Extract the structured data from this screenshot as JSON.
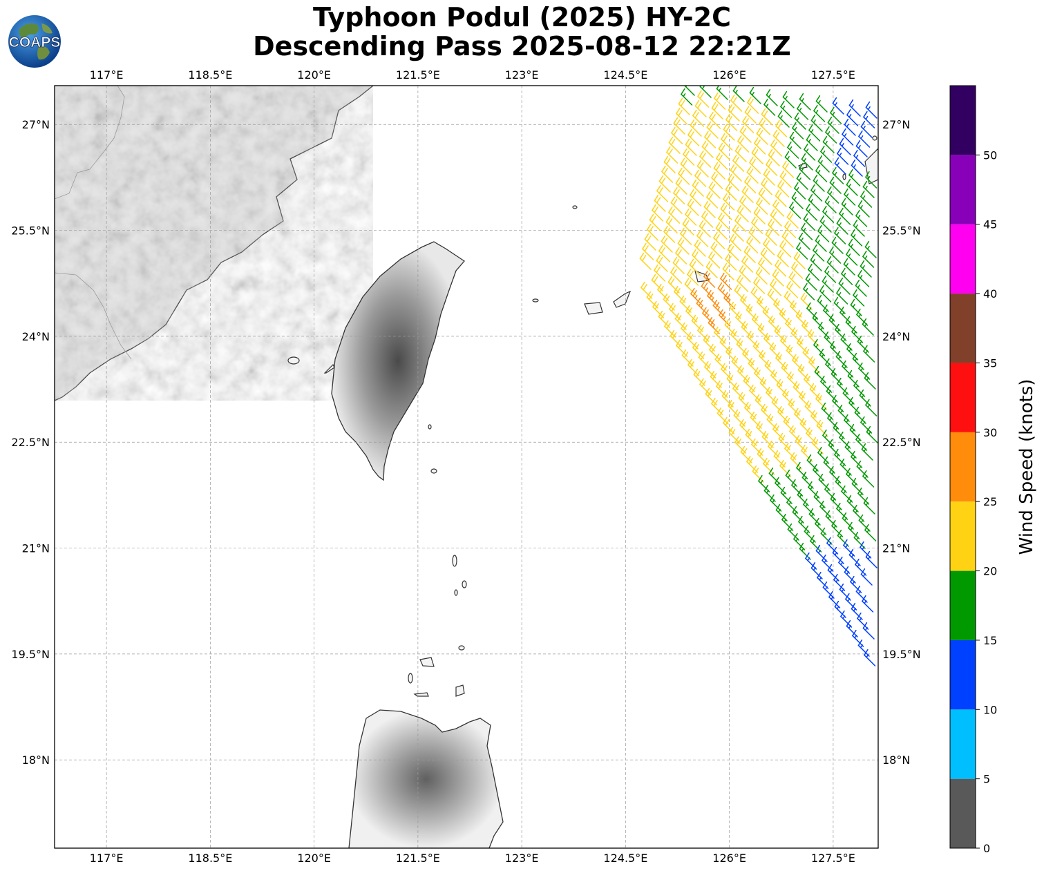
{
  "title": {
    "line1": "Typhoon Podul (2025) HY-2C",
    "line2": "Descending Pass 2025-08-12 22:21Z"
  },
  "logo": {
    "text": "COAPS",
    "icon": "globe-icon"
  },
  "map": {
    "lon_range": [
      116.25,
      128.15
    ],
    "lat_range": [
      16.75,
      27.55
    ],
    "lon_ticks": [
      {
        "value": 117,
        "label": "117°E"
      },
      {
        "value": 118.5,
        "label": "118.5°E"
      },
      {
        "value": 120,
        "label": "120°E"
      },
      {
        "value": 121.5,
        "label": "121.5°E"
      },
      {
        "value": 123,
        "label": "123°E"
      },
      {
        "value": 124.5,
        "label": "124.5°E"
      },
      {
        "value": 126,
        "label": "126°E"
      },
      {
        "value": 127.5,
        "label": "127.5°E"
      }
    ],
    "lat_ticks": [
      {
        "value": 27,
        "label": "27°N"
      },
      {
        "value": 25.5,
        "label": "25.5°N"
      },
      {
        "value": 24,
        "label": "24°N"
      },
      {
        "value": 22.5,
        "label": "22.5°N"
      },
      {
        "value": 21,
        "label": "21°N"
      },
      {
        "value": 19.5,
        "label": "19.5°N"
      },
      {
        "value": 18,
        "label": "18°N"
      }
    ],
    "gridlines": true,
    "land_shading": "grayscale terrain"
  },
  "colorbar": {
    "label": "Wind Speed (knots)",
    "bins": [
      {
        "min": 0,
        "max": 5,
        "color": "#595959"
      },
      {
        "min": 5,
        "max": 10,
        "color": "#00bfff"
      },
      {
        "min": 10,
        "max": 15,
        "color": "#0040ff"
      },
      {
        "min": 15,
        "max": 20,
        "color": "#009900"
      },
      {
        "min": 20,
        "max": 25,
        "color": "#ffd314"
      },
      {
        "min": 25,
        "max": 30,
        "color": "#ff8c0a"
      },
      {
        "min": 30,
        "max": 35,
        "color": "#ff1010"
      },
      {
        "min": 35,
        "max": 40,
        "color": "#80402a"
      },
      {
        "min": 40,
        "max": 45,
        "color": "#ff00f0"
      },
      {
        "min": 45,
        "max": 50,
        "color": "#8800b8"
      },
      {
        "min": 50,
        "max": 55,
        "color": "#320060"
      }
    ],
    "tick_labels": [
      "0",
      "5",
      "10",
      "15",
      "20",
      "25",
      "30",
      "35",
      "40",
      "45",
      "50"
    ]
  },
  "swath": {
    "description_of_edges": "descending pass swath over the east edge of the map",
    "wind_direction_deg_from": 315
  }
}
